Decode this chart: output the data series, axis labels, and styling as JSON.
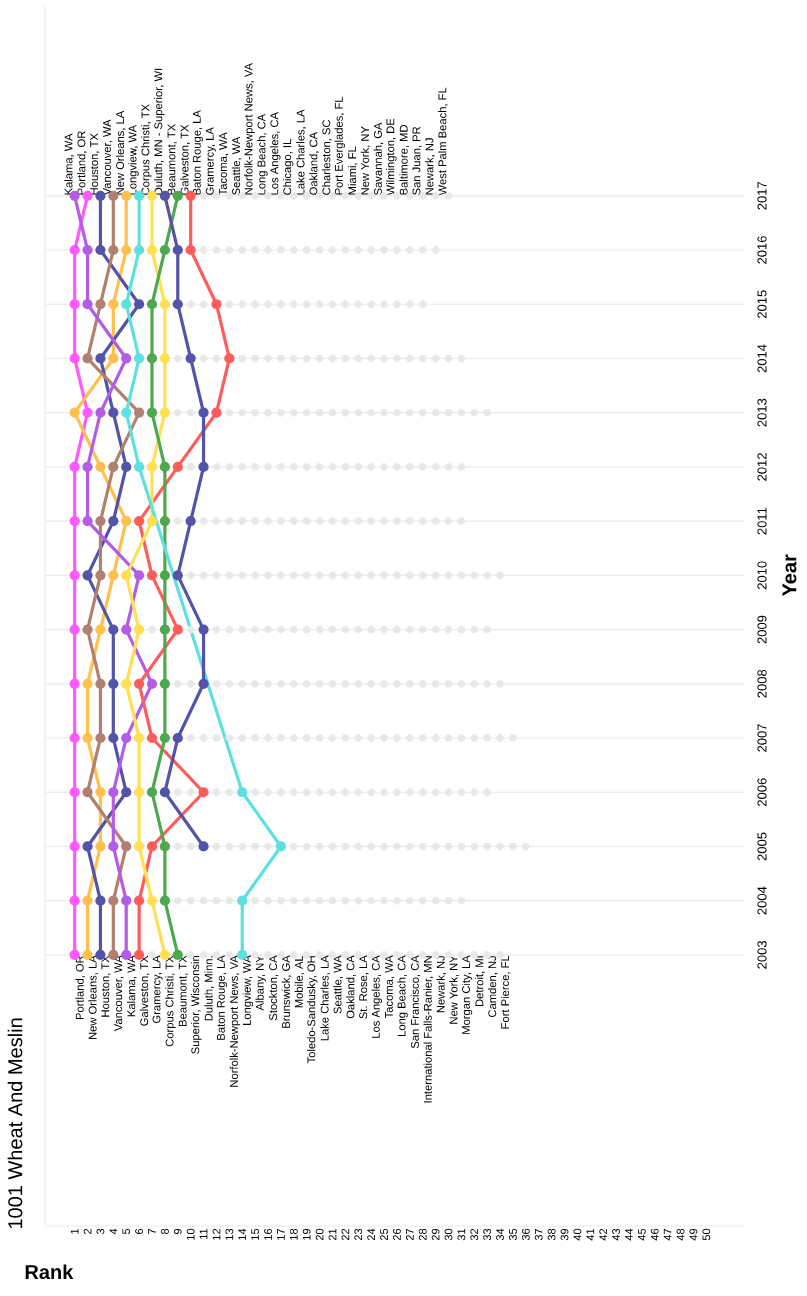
{
  "chart_data": {
    "type": "line",
    "orientation": "horizontal",
    "subtitle": "1001 Wheat And Meslin",
    "xlabel": "Rank",
    "ylabel": "Year",
    "x": [
      2003,
      2004,
      2005,
      2006,
      2007,
      2008,
      2009,
      2010,
      2011,
      2012,
      2013,
      2014,
      2015,
      2016,
      2017
    ],
    "xlim": [
      -1.3,
      53
    ],
    "xticks": [
      1,
      2,
      3,
      4,
      5,
      6,
      7,
      8,
      9,
      10,
      11,
      12,
      13,
      14,
      15,
      16,
      17,
      18,
      19,
      20,
      21,
      22,
      23,
      24,
      25,
      26,
      27,
      28,
      29,
      30,
      31,
      32,
      33,
      34,
      35,
      36,
      37,
      38,
      39,
      40,
      41,
      42,
      43,
      44,
      45,
      46,
      47,
      48,
      49,
      50
    ],
    "ylim": [
      1998,
      2020.5
    ],
    "yticks": [
      2003,
      2004,
      2005,
      2006,
      2007,
      2008,
      2009,
      2010,
      2011,
      2012,
      2013,
      2014,
      2015,
      2016,
      2017
    ],
    "grid": "y",
    "marker": "circle",
    "series": [
      {
        "type": "scatter",
        "color": "#e8e8e8",
        "x": [
          2003,
          2003,
          2003,
          2003,
          2003,
          2003,
          2003,
          2003,
          2003,
          2003,
          2003,
          2003,
          2003,
          2003,
          2003,
          2003,
          2003,
          2003,
          2003,
          2003,
          2003,
          2003,
          2003,
          2003,
          2003,
          2004,
          2004,
          2004,
          2004,
          2004,
          2004,
          2004,
          2004,
          2004,
          2004,
          2004,
          2004,
          2004,
          2004,
          2004,
          2004,
          2004,
          2004,
          2004,
          2004,
          2004,
          2004,
          2005,
          2005,
          2005,
          2005,
          2005,
          2005,
          2005,
          2005,
          2005,
          2005,
          2005,
          2005,
          2005,
          2005,
          2005,
          2005,
          2005,
          2005,
          2005,
          2005,
          2005,
          2005,
          2005,
          2005,
          2005,
          2005,
          2006,
          2006,
          2006,
          2006,
          2006,
          2006,
          2006,
          2006,
          2006,
          2006,
          2006,
          2006,
          2006,
          2006,
          2006,
          2006,
          2006,
          2006,
          2006,
          2006,
          2006,
          2006,
          2006,
          2007,
          2007,
          2007,
          2007,
          2007,
          2007,
          2007,
          2007,
          2007,
          2007,
          2007,
          2007,
          2007,
          2007,
          2007,
          2007,
          2007,
          2007,
          2007,
          2007,
          2007,
          2007,
          2007,
          2007,
          2007,
          2007,
          2008,
          2008,
          2008,
          2008,
          2008,
          2008,
          2008,
          2008,
          2008,
          2008,
          2008,
          2008,
          2008,
          2008,
          2008,
          2008,
          2008,
          2008,
          2008,
          2008,
          2008,
          2008,
          2008,
          2008,
          2008,
          2009,
          2009,
          2009,
          2009,
          2009,
          2009,
          2009,
          2009,
          2009,
          2009,
          2009,
          2009,
          2009,
          2009,
          2009,
          2009,
          2009,
          2009,
          2009,
          2009,
          2009,
          2009,
          2009,
          2009,
          2010,
          2010,
          2010,
          2010,
          2010,
          2010,
          2010,
          2010,
          2010,
          2010,
          2010,
          2010,
          2010,
          2010,
          2010,
          2010,
          2010,
          2010,
          2010,
          2010,
          2010,
          2010,
          2010,
          2010,
          2010,
          2011,
          2011,
          2011,
          2011,
          2011,
          2011,
          2011,
          2011,
          2011,
          2011,
          2011,
          2011,
          2011,
          2011,
          2011,
          2011,
          2011,
          2011,
          2011,
          2011,
          2011,
          2011,
          2012,
          2012,
          2012,
          2012,
          2012,
          2012,
          2012,
          2012,
          2012,
          2012,
          2012,
          2012,
          2012,
          2012,
          2012,
          2012,
          2012,
          2012,
          2012,
          2012,
          2012,
          2013,
          2013,
          2013,
          2013,
          2013,
          2013,
          2013,
          2013,
          2013,
          2013,
          2013,
          2013,
          2013,
          2013,
          2013,
          2013,
          2013,
          2013,
          2013,
          2013,
          2013,
          2013,
          2013,
          2014,
          2014,
          2014,
          2014,
          2014,
          2014,
          2014,
          2014,
          2014,
          2014,
          2014,
          2014,
          2014,
          2014,
          2014,
          2014,
          2014,
          2014,
          2014,
          2014,
          2014,
          2015,
          2015,
          2015,
          2015,
          2015,
          2015,
          2015,
          2015,
          2015,
          2015,
          2015,
          2015,
          2015,
          2015,
          2015,
          2015,
          2015,
          2015,
          2016,
          2016,
          2016,
          2016,
          2016,
          2016,
          2016,
          2016,
          2016,
          2016,
          2016,
          2016,
          2016,
          2016,
          2016,
          2016,
          2016,
          2016,
          2016,
          2017,
          2017,
          2017,
          2017,
          2017,
          2017,
          2017,
          2017,
          2017,
          2017,
          2017,
          2017,
          2017,
          2017,
          2017,
          2017,
          2017,
          2017,
          2017,
          2017
        ],
        "values": [
          7,
          10,
          11,
          12,
          13,
          15,
          16,
          17,
          18,
          19,
          20,
          21,
          22,
          23,
          24,
          25,
          26,
          27,
          28,
          29,
          30,
          31,
          32,
          33,
          34,
          9,
          10,
          11,
          12,
          13,
          15,
          16,
          17,
          18,
          19,
          20,
          21,
          22,
          23,
          24,
          25,
          26,
          27,
          28,
          29,
          30,
          31,
          9,
          10,
          12,
          13,
          14,
          15,
          16,
          18,
          19,
          20,
          21,
          22,
          23,
          24,
          25,
          26,
          27,
          28,
          29,
          30,
          31,
          32,
          33,
          34,
          35,
          36,
          9,
          10,
          12,
          13,
          15,
          16,
          17,
          18,
          19,
          20,
          21,
          22,
          23,
          24,
          25,
          26,
          27,
          28,
          29,
          30,
          31,
          32,
          33,
          10,
          11,
          12,
          13,
          14,
          15,
          16,
          17,
          18,
          19,
          20,
          21,
          22,
          23,
          24,
          25,
          26,
          27,
          28,
          29,
          30,
          31,
          32,
          33,
          34,
          35,
          9,
          10,
          12,
          13,
          14,
          15,
          16,
          17,
          18,
          19,
          20,
          21,
          22,
          23,
          24,
          25,
          26,
          27,
          28,
          29,
          30,
          31,
          32,
          33,
          34,
          7,
          10,
          12,
          13,
          14,
          15,
          16,
          17,
          18,
          19,
          20,
          21,
          22,
          23,
          24,
          25,
          26,
          27,
          28,
          29,
          30,
          31,
          32,
          33,
          10,
          11,
          12,
          13,
          14,
          15,
          16,
          17,
          18,
          19,
          20,
          21,
          22,
          23,
          24,
          25,
          26,
          27,
          28,
          29,
          30,
          31,
          32,
          33,
          34,
          9,
          11,
          12,
          13,
          14,
          15,
          16,
          17,
          18,
          19,
          20,
          21,
          22,
          23,
          24,
          25,
          26,
          27,
          28,
          29,
          30,
          31,
          10,
          12,
          13,
          14,
          15,
          16,
          17,
          18,
          19,
          20,
          21,
          22,
          23,
          24,
          25,
          26,
          27,
          28,
          29,
          30,
          31,
          9,
          10,
          13,
          14,
          15,
          16,
          17,
          18,
          19,
          20,
          21,
          22,
          23,
          24,
          25,
          26,
          27,
          28,
          29,
          30,
          31,
          32,
          33,
          9,
          11,
          12,
          14,
          15,
          16,
          17,
          18,
          19,
          20,
          21,
          22,
          23,
          24,
          25,
          26,
          27,
          28,
          29,
          30,
          31,
          10,
          11,
          13,
          14,
          15,
          16,
          17,
          18,
          19,
          20,
          21,
          22,
          23,
          24,
          25,
          26,
          27,
          28,
          11,
          12,
          13,
          14,
          15,
          16,
          17,
          18,
          19,
          20,
          21,
          22,
          23,
          24,
          25,
          26,
          27,
          28,
          29,
          11,
          12,
          13,
          14,
          15,
          16,
          17,
          18,
          19,
          20,
          21,
          22,
          23,
          24,
          25,
          26,
          27,
          28,
          29,
          30
        ]
      },
      {
        "color": "#ff59ff",
        "values": [
          1,
          1,
          1,
          1,
          1,
          1,
          1,
          1,
          1,
          1,
          2,
          1,
          1,
          1,
          2
        ]
      },
      {
        "color": "#ffc04d",
        "values": [
          2,
          2,
          3,
          3,
          2,
          2,
          3,
          4,
          5,
          3,
          1,
          4,
          4,
          5,
          5
        ]
      },
      {
        "color": "#5353a8",
        "values": [
          3,
          3,
          2,
          5,
          4,
          4,
          4,
          2,
          4,
          5,
          4,
          3,
          6,
          3,
          3
        ]
      },
      {
        "color": "#b08070",
        "values": [
          4,
          4,
          5,
          2,
          3,
          3,
          2,
          3,
          3,
          4,
          6,
          2,
          3,
          4,
          4
        ]
      },
      {
        "color": "#b35ce6",
        "values": [
          5,
          5,
          4,
          4,
          5,
          7,
          5,
          6,
          2,
          2,
          3,
          5,
          2,
          2,
          1
        ]
      },
      {
        "color": "#ff5c5c",
        "values": [
          6,
          6,
          7,
          11,
          7,
          6,
          9,
          7,
          6,
          9,
          12,
          13,
          12,
          10,
          10
        ]
      },
      {
        "color": "#ffe055",
        "values": [
          8,
          7,
          6,
          6,
          6,
          5,
          6,
          5,
          7,
          7,
          8,
          8,
          8,
          7,
          7
        ]
      },
      {
        "color": "#4ea84e",
        "values": [
          9,
          8,
          8,
          7,
          8,
          8,
          8,
          8,
          8,
          8,
          7,
          7,
          7,
          8,
          9
        ]
      },
      {
        "color": "#5ee0e0",
        "x": [
          2003,
          2004,
          2005,
          2006,
          2012,
          2013,
          2014,
          2015,
          2016,
          2017
        ],
        "values": [
          14,
          14,
          17,
          14,
          6,
          5,
          6,
          5,
          6,
          6
        ]
      },
      {
        "color": "#5353a8",
        "x": [
          2005,
          2006,
          2007,
          2008,
          2009,
          2010,
          2011,
          2012,
          2013,
          2014,
          2015,
          2016,
          2017
        ],
        "values": [
          11,
          8,
          9,
          11,
          11,
          9,
          10,
          11,
          11,
          10,
          9,
          9,
          8
        ]
      }
    ],
    "annotations": [
      {
        "text": "Portland, OR",
        "x": 1,
        "y": 2003
      },
      {
        "text": "New Orleans, LA",
        "x": 2,
        "y": 2003
      },
      {
        "text": "Houston, TX",
        "x": 3,
        "y": 2003
      },
      {
        "text": "Vancouver, WA",
        "x": 4,
        "y": 2003
      },
      {
        "text": "Kalama, WA",
        "x": 5,
        "y": 2003
      },
      {
        "text": "Galveston, TX",
        "x": 6,
        "y": 2003
      },
      {
        "text": "Gramercy, LA",
        "x": 7,
        "y": 2003
      },
      {
        "text": "Corpus Christi, TX",
        "x": 8,
        "y": 2003
      },
      {
        "text": "Beaumont, TX",
        "x": 9,
        "y": 2003
      },
      {
        "text": "Superior, Wisconsin",
        "x": 10,
        "y": 2003
      },
      {
        "text": "Duluth, Minn.",
        "x": 11,
        "y": 2003
      },
      {
        "text": "Baton Rouge, LA",
        "x": 12,
        "y": 2003
      },
      {
        "text": "Norfolk-Newport News, VA",
        "x": 13,
        "y": 2003
      },
      {
        "text": "Longview, WA",
        "x": 14,
        "y": 2003
      },
      {
        "text": "Albany, NY",
        "x": 15,
        "y": 2003
      },
      {
        "text": "Stockton, CA",
        "x": 16,
        "y": 2003
      },
      {
        "text": "Brunswick, GA",
        "x": 17,
        "y": 2003
      },
      {
        "text": "Mobile, AL",
        "x": 18,
        "y": 2003
      },
      {
        "text": "Toledo-Sandusky, OH",
        "x": 19,
        "y": 2003
      },
      {
        "text": "Lake Charles, LA",
        "x": 20,
        "y": 2003
      },
      {
        "text": "Seattle, WA",
        "x": 21,
        "y": 2003
      },
      {
        "text": "Oakland, CA",
        "x": 22,
        "y": 2003
      },
      {
        "text": "St. Rose, LA",
        "x": 23,
        "y": 2003
      },
      {
        "text": "Los Angeles, CA",
        "x": 24,
        "y": 2003
      },
      {
        "text": "Tacoma, WA",
        "x": 25,
        "y": 2003
      },
      {
        "text": "Long Beach, CA",
        "x": 26,
        "y": 2003
      },
      {
        "text": "San Francisco, CA",
        "x": 27,
        "y": 2003
      },
      {
        "text": "International Falls-Ranier, MN",
        "x": 28,
        "y": 2003
      },
      {
        "text": "Newark, NJ",
        "x": 29,
        "y": 2003
      },
      {
        "text": "New York, NY",
        "x": 30,
        "y": 2003
      },
      {
        "text": "Morgan City, LA",
        "x": 31,
        "y": 2003
      },
      {
        "text": "Detroit, MI",
        "x": 32,
        "y": 2003
      },
      {
        "text": "Camden, NJ",
        "x": 33,
        "y": 2003
      },
      {
        "text": "Fort Pierce, FL",
        "x": 34,
        "y": 2003
      },
      {
        "text": "Kalama, WA",
        "x": 1,
        "y": 2017
      },
      {
        "text": "Portland, OR",
        "x": 2,
        "y": 2017
      },
      {
        "text": "Houston, TX",
        "x": 3,
        "y": 2017
      },
      {
        "text": "Vancouver, WA",
        "x": 4,
        "y": 2017
      },
      {
        "text": "New Orleans, LA",
        "x": 5,
        "y": 2017
      },
      {
        "text": "Longview, WA",
        "x": 6,
        "y": 2017
      },
      {
        "text": "Corpus Christi, TX",
        "x": 7,
        "y": 2017
      },
      {
        "text": "Duluth, MN - Superior, WI",
        "x": 8,
        "y": 2017
      },
      {
        "text": "Beaumont, TX",
        "x": 9,
        "y": 2017
      },
      {
        "text": "Galveston, TX",
        "x": 10,
        "y": 2017
      },
      {
        "text": "Baton Rouge, LA",
        "x": 11,
        "y": 2017
      },
      {
        "text": "Gramercy, LA",
        "x": 12,
        "y": 2017
      },
      {
        "text": "Tacoma, WA",
        "x": 13,
        "y": 2017
      },
      {
        "text": "Seattle, WA",
        "x": 14,
        "y": 2017
      },
      {
        "text": "Norfolk-Newport News, VA",
        "x": 15,
        "y": 2017
      },
      {
        "text": "Long Beach, CA",
        "x": 16,
        "y": 2017
      },
      {
        "text": "Los Angeles, CA",
        "x": 17,
        "y": 2017
      },
      {
        "text": "Chicago, IL",
        "x": 18,
        "y": 2017
      },
      {
        "text": "Lake Charles, LA",
        "x": 19,
        "y": 2017
      },
      {
        "text": "Oakland, CA",
        "x": 20,
        "y": 2017
      },
      {
        "text": "Charleston, SC",
        "x": 21,
        "y": 2017
      },
      {
        "text": "Port Everglades, FL",
        "x": 22,
        "y": 2017
      },
      {
        "text": "Miami, FL",
        "x": 23,
        "y": 2017
      },
      {
        "text": "New York, NY",
        "x": 24,
        "y": 2017
      },
      {
        "text": "Savannah, GA",
        "x": 25,
        "y": 2017
      },
      {
        "text": "Wilmington, DE",
        "x": 26,
        "y": 2017
      },
      {
        "text": "Baltimore, MD",
        "x": 27,
        "y": 2017
      },
      {
        "text": "San Juan, PR",
        "x": 28,
        "y": 2017
      },
      {
        "text": "Newark, NJ",
        "x": 29,
        "y": 2017
      },
      {
        "text": "West Palm Beach, FL",
        "x": 30,
        "y": 2017
      }
    ]
  }
}
